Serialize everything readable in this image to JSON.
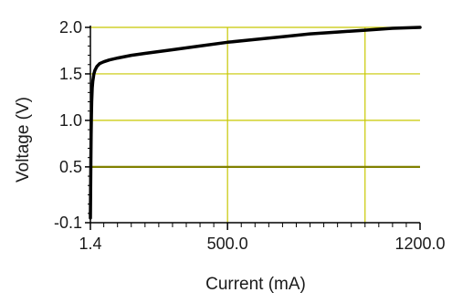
{
  "chart_data": {
    "type": "line",
    "title": "",
    "xlabel": "Current (mA)",
    "ylabel": "Voltage (V)",
    "x_ticks": [
      {
        "value": 1.4,
        "label": "1.4"
      },
      {
        "value": 500.0,
        "label": "500.0"
      },
      {
        "value": 1200.0,
        "label": "1200.0"
      }
    ],
    "y_ticks": [
      {
        "value": -0.1,
        "label": "-0.1"
      },
      {
        "value": 0.5,
        "label": "0.5"
      },
      {
        "value": 1.0,
        "label": "1.0"
      },
      {
        "value": 1.5,
        "label": "1.5"
      },
      {
        "value": 2.0,
        "label": "2.0"
      }
    ],
    "xlim": [
      1.4,
      1200.0
    ],
    "ylim": [
      -0.1,
      2.0
    ],
    "grid": true,
    "x_gridlines": [
      500.0,
      1000.0
    ],
    "y_gridlines": [
      0.5,
      1.0,
      1.5,
      2.0
    ],
    "highlight_gridline_y": 0.5,
    "colors": {
      "series": "#000000",
      "grid": "#c8c800",
      "highlight_grid": "#808000",
      "axis": "#000000"
    },
    "series": [
      {
        "x": [
          1.4,
          2,
          3,
          4,
          5,
          6,
          8,
          10,
          14,
          18,
          25,
          35,
          50,
          70,
          100,
          150,
          200,
          300,
          400,
          500,
          600,
          700,
          800,
          900,
          1000,
          1100,
          1200
        ],
        "y": [
          -0.05,
          0.2,
          0.55,
          0.85,
          1.05,
          1.2,
          1.35,
          1.42,
          1.5,
          1.54,
          1.58,
          1.61,
          1.63,
          1.65,
          1.67,
          1.7,
          1.72,
          1.76,
          1.8,
          1.84,
          1.87,
          1.9,
          1.93,
          1.95,
          1.97,
          1.99,
          2.0
        ]
      }
    ]
  }
}
